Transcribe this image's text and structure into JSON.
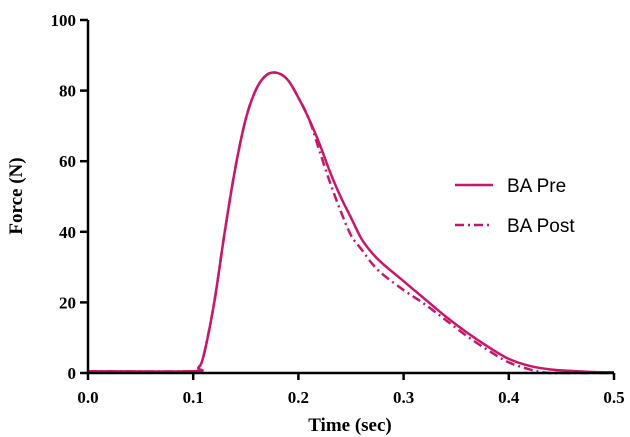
{
  "chart_data": {
    "type": "line",
    "xlabel": "Time (sec)",
    "ylabel": "Force (N)",
    "xlim": [
      0.0,
      0.5
    ],
    "ylim": [
      0,
      100
    ],
    "x_ticks": [
      "0.0",
      "0.1",
      "0.2",
      "0.3",
      "0.4",
      "0.5"
    ],
    "y_ticks": [
      "0",
      "20",
      "40",
      "60",
      "80",
      "100"
    ],
    "grid": false,
    "legend_position": "right",
    "series": [
      {
        "name": "BA Pre",
        "style": "solid",
        "color": "#c8176a",
        "x": [
          0.0,
          0.1,
          0.105,
          0.11,
          0.12,
          0.13,
          0.14,
          0.15,
          0.16,
          0.17,
          0.18,
          0.19,
          0.2,
          0.21,
          0.22,
          0.23,
          0.24,
          0.25,
          0.26,
          0.27,
          0.28,
          0.3,
          0.32,
          0.34,
          0.36,
          0.38,
          0.4,
          0.42,
          0.44,
          0.46,
          0.48,
          0.5
        ],
        "values": [
          0.5,
          0.5,
          1.5,
          5,
          20,
          40,
          58,
          72,
          80.5,
          84.5,
          85,
          83,
          78,
          72,
          65,
          57,
          50,
          44,
          38,
          34,
          31,
          26,
          21,
          16,
          11.5,
          7.5,
          4,
          2,
          1,
          0.6,
          0.3,
          0.2
        ]
      },
      {
        "name": "BA Post",
        "style": "dashdot",
        "color": "#c8176a",
        "x": [
          0.0,
          0.1,
          0.105,
          0.11,
          0.12,
          0.13,
          0.14,
          0.15,
          0.16,
          0.17,
          0.18,
          0.19,
          0.2,
          0.21,
          0.22,
          0.23,
          0.24,
          0.25,
          0.26,
          0.27,
          0.28,
          0.3,
          0.32,
          0.34,
          0.36,
          0.38,
          0.4,
          0.42,
          0.43,
          0.44,
          0.46,
          0.5
        ],
        "values": [
          0.5,
          0.5,
          1.5,
          5,
          20,
          40,
          58,
          72,
          80.5,
          84.5,
          85,
          83,
          78,
          72,
          63,
          54,
          46,
          39,
          35,
          31,
          28,
          23.5,
          19.5,
          15,
          10.5,
          6.5,
          3,
          1,
          0.3,
          0,
          0,
          0
        ]
      }
    ]
  }
}
